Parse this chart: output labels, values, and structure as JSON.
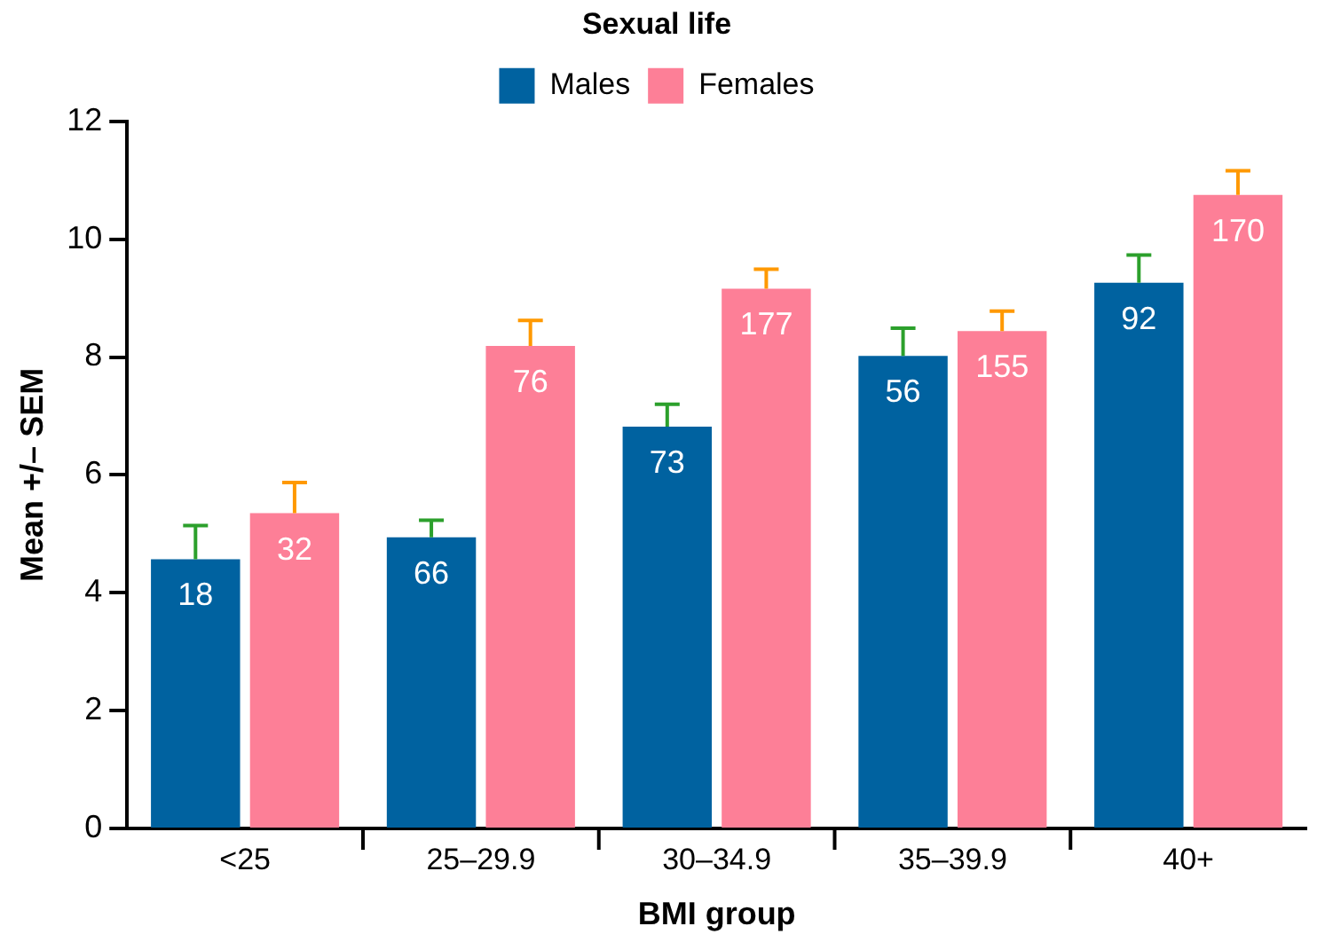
{
  "chart_data": {
    "type": "bar",
    "title": "Sexual life",
    "xlabel": "BMI group",
    "ylabel": "Mean +/– SEM",
    "categories": [
      "<25",
      "25–29.9",
      "30–34.9",
      "35–39.9",
      "40+"
    ],
    "series": [
      {
        "name": "Males",
        "color": "#0062a0",
        "values": [
          4.57,
          4.94,
          6.82,
          8.02,
          9.26
        ],
        "errors": [
          [
            4.57,
            5.14
          ],
          [
            4.94,
            5.23
          ],
          [
            6.82,
            7.2
          ],
          [
            8.02,
            8.49
          ],
          [
            9.26,
            9.73
          ]
        ]
      },
      {
        "name": "Females",
        "color": "#fd7f97",
        "values": [
          5.35,
          8.19,
          9.16,
          8.44,
          10.75
        ],
        "errors": [
          [
            5.35,
            5.87
          ],
          [
            8.19,
            8.62
          ],
          [
            9.16,
            9.49
          ],
          [
            8.44,
            8.78
          ],
          [
            10.75,
            11.16
          ]
        ]
      }
    ],
    "annotations": [
      {
        "text": "18",
        "x": "<25",
        "y": 4.57
      },
      {
        "text": "66",
        "x": "25–29.9",
        "y": 4.94
      },
      {
        "text": "73",
        "x": "30–34.9",
        "y": 6.82
      },
      {
        "text": "56",
        "x": "35–39.9",
        "y": 8.02
      },
      {
        "text": "92",
        "x": "40+",
        "y": 9.26
      },
      {
        "text": "32",
        "x": "<25",
        "y": 5.35
      },
      {
        "text": "76",
        "x": "25–29.9",
        "y": 8.19
      },
      {
        "text": "177",
        "x": "30–34.9",
        "y": 9.16
      },
      {
        "text": "155",
        "x": "35–39.9",
        "y": 8.44
      },
      {
        "text": "170",
        "x": "40+",
        "y": 10.75
      }
    ],
    "ylim": [
      0,
      12
    ],
    "yticks": [
      0,
      2,
      4,
      6,
      8,
      10,
      12
    ],
    "grid": false,
    "legend": "top"
  }
}
